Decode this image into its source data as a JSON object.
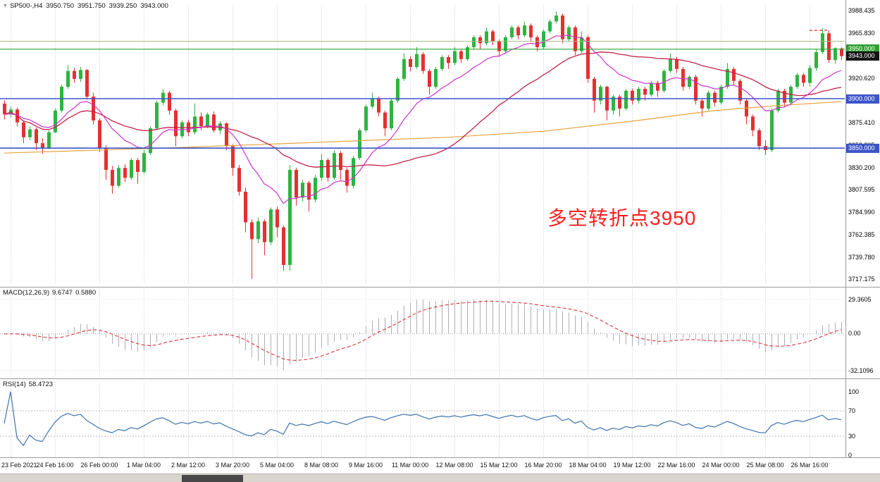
{
  "header": {
    "marker": "▼",
    "symbol": "SP500-,H4",
    "open": "3950.750",
    "high": "3951.750",
    "low": "3939.250",
    "close": "3943.000"
  },
  "annotation": {
    "text": "多空转折点3950",
    "color": "#ff1f1f"
  },
  "scrollbar": {
    "thumb_position": "left-third"
  },
  "chart_data": {
    "type": "candlestick",
    "title": "SP500-,H4",
    "timeframe": "H4",
    "style": {
      "up_color": "#2eb440",
      "down_color": "#e43030",
      "grid_color": "#c9c9c9"
    },
    "price_axis": {
      "ticks": [
        "3988.435",
        "3965.830",
        "3943.225",
        "3920.620",
        "3898.015",
        "3875.410",
        "3852.805",
        "3830.200",
        "3807.595",
        "3784.990",
        "3762.385",
        "3739.780",
        "3717.175"
      ]
    },
    "current_price": {
      "value": 3943.0,
      "label": "3943.000",
      "box_color": "#141414"
    },
    "hlines": [
      {
        "price": 3958.0,
        "color": "#a9b87e",
        "width": 1,
        "label": null,
        "box_color": null
      },
      {
        "price": 3950.0,
        "color": "#2ea12e",
        "width": 1.2,
        "label": "3950.000",
        "box_color": "#2ea12e"
      },
      {
        "price": 3900.0,
        "color": "#3c55c8",
        "width": 1.6,
        "label": "3900.000",
        "box_color": "#3c55c8"
      },
      {
        "price": 3850.0,
        "color": "#3c55c8",
        "width": 1.6,
        "label": "3850.000",
        "box_color": "#3c55c8"
      }
    ],
    "marker": {
      "type": "dashed-high-mark",
      "price": 3969,
      "from_index": 127,
      "to_index": 130,
      "color": "#ff3b30"
    },
    "time_axis": {
      "labels": [
        "23 Feb 2021",
        "24 Feb 16:00",
        "26 Feb 00:00",
        "1 Mar 04:00",
        "2 Mar 12:00",
        "3 Mar 20:00",
        "5 Mar 04:00",
        "8 Mar 08:00",
        "9 Mar 16:00",
        "11 Mar 00:00",
        "12 Mar 08:00",
        "15 Mar 12:00",
        "16 Mar 20:00",
        "18 Mar 04:00",
        "19 Mar 12:00",
        "22 Mar 16:00",
        "24 Mar 00:00",
        "25 Mar 08:00",
        "26 Mar 16:00"
      ],
      "grid_indices": [
        1,
        8,
        15,
        22,
        29,
        36,
        43,
        50,
        57,
        64,
        71,
        78,
        85,
        92,
        99,
        106,
        113,
        120,
        127
      ]
    },
    "indicators": {
      "moving_averages": {
        "fast": {
          "period": 13,
          "method": "ema",
          "color": "#cc33cc"
        },
        "slow": {
          "period": 34,
          "method": "sma",
          "color": "#c3224a"
        },
        "long": {
          "color": "#e8a33d",
          "points": [
            [
              0,
              3845
            ],
            [
              25,
              3850
            ],
            [
              50,
              3856
            ],
            [
              70,
              3861
            ],
            [
              85,
              3867
            ],
            [
              100,
              3878
            ],
            [
              112,
              3888
            ],
            [
              122,
              3893
            ],
            [
              132,
              3897
            ]
          ]
        }
      },
      "macd": {
        "label": "MACD(12,26,9)",
        "value_main": "9.6747",
        "value_signal": "0.5880",
        "params": {
          "fast": 12,
          "slow": 26,
          "signal": 9
        },
        "axis": {
          "max": "29.3605",
          "zero": "0.00",
          "min": "-32.1096"
        },
        "histogram_color": "#b0b0b0",
        "signal_color": "#d9353f"
      },
      "rsi": {
        "label": "RSI(14)",
        "value": "58.4723",
        "period": 14,
        "levels": [
          "100",
          "70",
          "30",
          "0"
        ],
        "level_lines": [
          70,
          30
        ],
        "line_color": "#3f72ad"
      }
    },
    "candles": [
      [
        3895,
        3898,
        3879,
        3884
      ],
      [
        3884,
        3892,
        3881,
        3889
      ],
      [
        3889,
        3891,
        3872,
        3876
      ],
      [
        3876,
        3878,
        3855,
        3861
      ],
      [
        3861,
        3872,
        3858,
        3869
      ],
      [
        3869,
        3871,
        3848,
        3855
      ],
      [
        3855,
        3860,
        3844,
        3850
      ],
      [
        3850,
        3868,
        3849,
        3866
      ],
      [
        3866,
        3890,
        3865,
        3888
      ],
      [
        3888,
        3914,
        3886,
        3912
      ],
      [
        3912,
        3934,
        3910,
        3928
      ],
      [
        3928,
        3931,
        3916,
        3920
      ],
      [
        3920,
        3932,
        3917,
        3929
      ],
      [
        3929,
        3930,
        3899,
        3902
      ],
      [
        3902,
        3906,
        3874,
        3878
      ],
      [
        3878,
        3880,
        3846,
        3850
      ],
      [
        3850,
        3853,
        3818,
        3828
      ],
      [
        3828,
        3832,
        3804,
        3812
      ],
      [
        3812,
        3833,
        3810,
        3830
      ],
      [
        3830,
        3834,
        3816,
        3820
      ],
      [
        3820,
        3840,
        3818,
        3838
      ],
      [
        3838,
        3840,
        3814,
        3826
      ],
      [
        3826,
        3848,
        3824,
        3845
      ],
      [
        3845,
        3872,
        3843,
        3870
      ],
      [
        3870,
        3898,
        3868,
        3896
      ],
      [
        3896,
        3910,
        3893,
        3906
      ],
      [
        3906,
        3908,
        3884,
        3888
      ],
      [
        3888,
        3890,
        3852,
        3862
      ],
      [
        3862,
        3878,
        3860,
        3876
      ],
      [
        3876,
        3879,
        3862,
        3866
      ],
      [
        3866,
        3895,
        3864,
        3882
      ],
      [
        3882,
        3886,
        3868,
        3872
      ],
      [
        3872,
        3886,
        3870,
        3884
      ],
      [
        3884,
        3887,
        3866,
        3868
      ],
      [
        3868,
        3877,
        3864,
        3875
      ],
      [
        3875,
        3876,
        3848,
        3852
      ],
      [
        3852,
        3854,
        3822,
        3830
      ],
      [
        3830,
        3833,
        3802,
        3806
      ],
      [
        3806,
        3810,
        3765,
        3775
      ],
      [
        3775,
        3778,
        3718,
        3758
      ],
      [
        3758,
        3780,
        3754,
        3776
      ],
      [
        3776,
        3778,
        3742,
        3755
      ],
      [
        3755,
        3790,
        3752,
        3788
      ],
      [
        3788,
        3791,
        3760,
        3770
      ],
      [
        3770,
        3772,
        3726,
        3732
      ],
      [
        3732,
        3833,
        3726,
        3828
      ],
      [
        3828,
        3830,
        3792,
        3800
      ],
      [
        3800,
        3818,
        3796,
        3815
      ],
      [
        3815,
        3817,
        3786,
        3798
      ],
      [
        3798,
        3823,
        3795,
        3820
      ],
      [
        3820,
        3844,
        3817,
        3838
      ],
      [
        3838,
        3840,
        3816,
        3820
      ],
      [
        3820,
        3848,
        3818,
        3845
      ],
      [
        3845,
        3847,
        3818,
        3828
      ],
      [
        3828,
        3830,
        3805,
        3812
      ],
      [
        3812,
        3842,
        3809,
        3840
      ],
      [
        3840,
        3870,
        3838,
        3868
      ],
      [
        3868,
        3894,
        3866,
        3892
      ],
      [
        3892,
        3906,
        3890,
        3900
      ],
      [
        3900,
        3902,
        3882,
        3886
      ],
      [
        3886,
        3888,
        3862,
        3870
      ],
      [
        3870,
        3900,
        3868,
        3898
      ],
      [
        3898,
        3922,
        3896,
        3920
      ],
      [
        3920,
        3946,
        3918,
        3940
      ],
      [
        3940,
        3943,
        3928,
        3932
      ],
      [
        3932,
        3952,
        3930,
        3945
      ],
      [
        3945,
        3947,
        3925,
        3928
      ],
      [
        3928,
        3930,
        3904,
        3912
      ],
      [
        3912,
        3932,
        3910,
        3930
      ],
      [
        3930,
        3944,
        3928,
        3942
      ],
      [
        3942,
        3944,
        3930,
        3936
      ],
      [
        3936,
        3952,
        3934,
        3948
      ],
      [
        3948,
        3950,
        3936,
        3940
      ],
      [
        3940,
        3954,
        3938,
        3952
      ],
      [
        3952,
        3964,
        3950,
        3962
      ],
      [
        3962,
        3964,
        3950,
        3956
      ],
      [
        3956,
        3972,
        3954,
        3968
      ],
      [
        3968,
        3970,
        3954,
        3958
      ],
      [
        3958,
        3960,
        3942,
        3948
      ],
      [
        3948,
        3964,
        3946,
        3962
      ],
      [
        3962,
        3974,
        3960,
        3972
      ],
      [
        3972,
        3974,
        3960,
        3964
      ],
      [
        3964,
        3978,
        3962,
        3974
      ],
      [
        3974,
        3976,
        3958,
        3962
      ],
      [
        3962,
        3964,
        3948,
        3952
      ],
      [
        3952,
        3970,
        3950,
        3968
      ],
      [
        3968,
        3980,
        3966,
        3978
      ],
      [
        3978,
        3988,
        3976,
        3984
      ],
      [
        3984,
        3986,
        3956,
        3960
      ],
      [
        3960,
        3974,
        3958,
        3972
      ],
      [
        3972,
        3974,
        3944,
        3948
      ],
      [
        3948,
        3968,
        3946,
        3962
      ],
      [
        3962,
        3964,
        3916,
        3920
      ],
      [
        3920,
        3922,
        3886,
        3898
      ],
      [
        3898,
        3914,
        3894,
        3912
      ],
      [
        3912,
        3913,
        3878,
        3888
      ],
      [
        3888,
        3904,
        3884,
        3902
      ],
      [
        3902,
        3904,
        3882,
        3890
      ],
      [
        3890,
        3910,
        3888,
        3908
      ],
      [
        3908,
        3910,
        3894,
        3898
      ],
      [
        3898,
        3912,
        3895,
        3910
      ],
      [
        3910,
        3912,
        3898,
        3904
      ],
      [
        3904,
        3918,
        3902,
        3916
      ],
      [
        3916,
        3918,
        3902,
        3908
      ],
      [
        3908,
        3930,
        3906,
        3928
      ],
      [
        3928,
        3946,
        3926,
        3940
      ],
      [
        3940,
        3942,
        3926,
        3930
      ],
      [
        3930,
        3932,
        3908,
        3912
      ],
      [
        3912,
        3924,
        3910,
        3922
      ],
      [
        3922,
        3924,
        3894,
        3898
      ],
      [
        3898,
        3900,
        3882,
        3890
      ],
      [
        3890,
        3908,
        3888,
        3906
      ],
      [
        3906,
        3908,
        3892,
        3896
      ],
      [
        3896,
        3914,
        3894,
        3912
      ],
      [
        3912,
        3936,
        3910,
        3930
      ],
      [
        3930,
        3932,
        3914,
        3918
      ],
      [
        3918,
        3920,
        3894,
        3898
      ],
      [
        3898,
        3900,
        3874,
        3882
      ],
      [
        3882,
        3884,
        3862,
        3868
      ],
      [
        3868,
        3870,
        3848,
        3852
      ],
      [
        3852,
        3858,
        3843,
        3848
      ],
      [
        3848,
        3890,
        3846,
        3888
      ],
      [
        3888,
        3910,
        3886,
        3908
      ],
      [
        3908,
        3910,
        3892,
        3896
      ],
      [
        3896,
        3914,
        3894,
        3912
      ],
      [
        3912,
        3926,
        3910,
        3924
      ],
      [
        3924,
        3926,
        3912,
        3916
      ],
      [
        3916,
        3934,
        3912,
        3931
      ],
      [
        3931,
        3950,
        3928,
        3947
      ],
      [
        3947,
        3971,
        3945,
        3966
      ],
      [
        3966,
        3969,
        3936,
        3939
      ],
      [
        3939,
        3952,
        3935,
        3951
      ],
      [
        3950.75,
        3951.75,
        3939.25,
        3943.0
      ]
    ]
  }
}
